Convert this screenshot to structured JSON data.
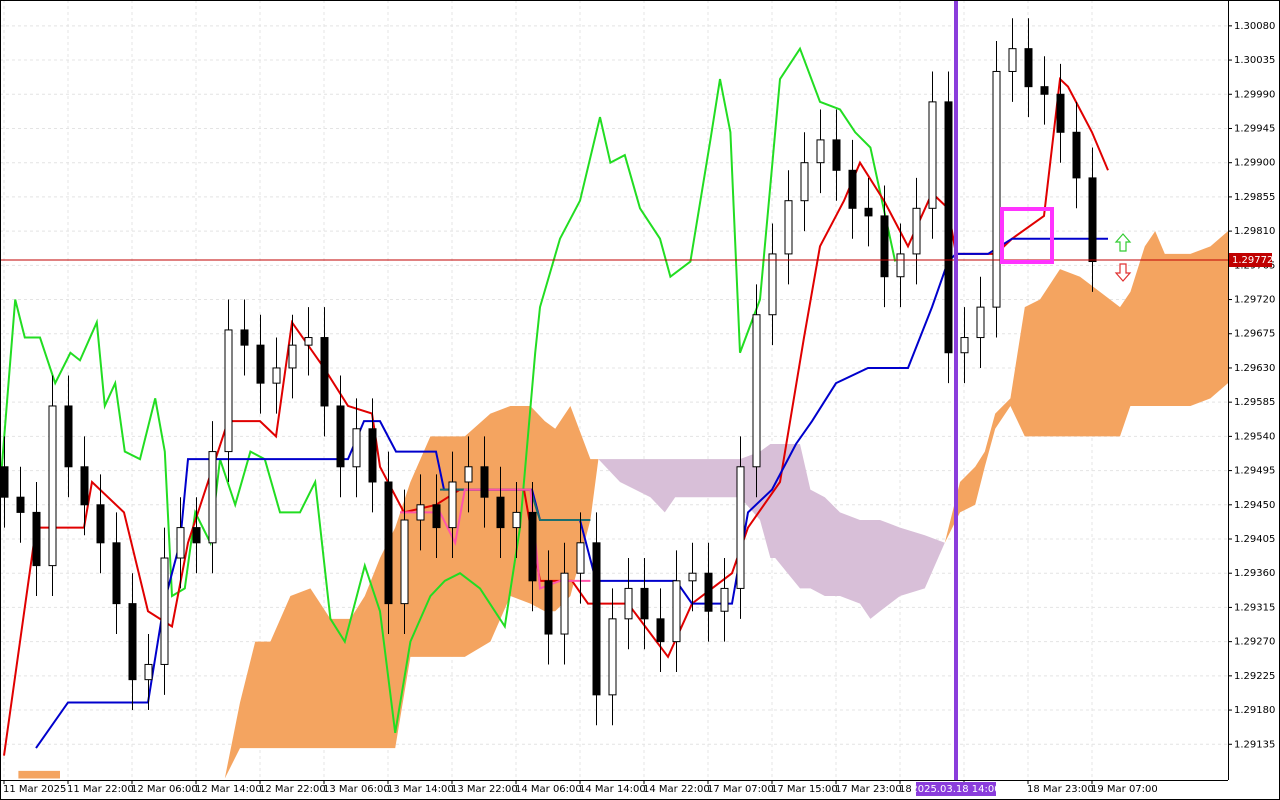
{
  "chart_data": {
    "type": "candlestick",
    "xlim": [
      -0.5,
      153
    ],
    "ylim": [
      1.29088,
      1.30114
    ],
    "grid": true,
    "xticks": [
      {
        "value": 0,
        "label": "11 Mar 2025"
      },
      {
        "value": 8,
        "label": "11 Mar 22:00"
      },
      {
        "value": 16,
        "label": "12 Mar 06:00"
      },
      {
        "value": 24,
        "label": "12 Mar 14:00"
      },
      {
        "value": 32,
        "label": "12 Mar 22:00"
      },
      {
        "value": 40,
        "label": "13 Mar 06:00"
      },
      {
        "value": 48,
        "label": "13 Mar 14:00"
      },
      {
        "value": 56,
        "label": "13 Mar 22:00"
      },
      {
        "value": 64,
        "label": "14 Mar 06:00"
      },
      {
        "value": 72,
        "label": "14 Mar 14:00"
      },
      {
        "value": 80,
        "label": "14 Mar 22:00"
      },
      {
        "value": 88,
        "label": "17 Mar 07:00"
      },
      {
        "value": 96,
        "label": "17 Mar 15:00"
      },
      {
        "value": 104,
        "label": "17 Mar 23:00"
      },
      {
        "value": 112,
        "label": "18 M"
      },
      {
        "value": 120,
        "label": "15:00"
      },
      {
        "value": 128,
        "label": "18 Mar 23:00"
      },
      {
        "value": 136,
        "label": "19 Mar 07:00"
      }
    ],
    "yticks": [
      {
        "value": 1.3008,
        "label": "1.30080"
      },
      {
        "value": 1.30035,
        "label": "1.30035"
      },
      {
        "value": 1.2999,
        "label": "1.29990"
      },
      {
        "value": 1.29945,
        "label": "1.29945"
      },
      {
        "value": 1.299,
        "label": "1.29900"
      },
      {
        "value": 1.29855,
        "label": "1.29855"
      },
      {
        "value": 1.2981,
        "label": "1.29810"
      },
      {
        "value": 1.29765,
        "label": "1.29765"
      },
      {
        "value": 1.2972,
        "label": "1.29720"
      },
      {
        "value": 1.29675,
        "label": "1.29675"
      },
      {
        "value": 1.2963,
        "label": "1.29630"
      },
      {
        "value": 1.29585,
        "label": "1.29585"
      },
      {
        "value": 1.2954,
        "label": "1.29540"
      },
      {
        "value": 1.29495,
        "label": "1.29495"
      },
      {
        "value": 1.2945,
        "label": "1.29450"
      },
      {
        "value": 1.29405,
        "label": "1.29405"
      },
      {
        "value": 1.2936,
        "label": "1.29360"
      },
      {
        "value": 1.29315,
        "label": "1.29315"
      },
      {
        "value": 1.2927,
        "label": "1.29270"
      },
      {
        "value": 1.29225,
        "label": "1.29225"
      },
      {
        "value": 1.2918,
        "label": "1.29180"
      },
      {
        "value": 1.29135,
        "label": "1.29135"
      }
    ],
    "candles": {
      "up_color": "#ffffff",
      "down_color": "#000000",
      "x": [
        0,
        2,
        4,
        6,
        8,
        10,
        12,
        14,
        16,
        18,
        20,
        22,
        24,
        26,
        28,
        30,
        32,
        34,
        36,
        38,
        40,
        42,
        44,
        46,
        48,
        50,
        52,
        54,
        56,
        58,
        60,
        62,
        64,
        66,
        68,
        70,
        72,
        74,
        76,
        78,
        80,
        82,
        84,
        86,
        88,
        90,
        92,
        94,
        96,
        98,
        100,
        102,
        104,
        106,
        108,
        110,
        112,
        114,
        116,
        118,
        120,
        122,
        124,
        126,
        128,
        130,
        132,
        134,
        136
      ],
      "open": [
        1.295,
        1.2946,
        1.2944,
        1.2937,
        1.2958,
        1.295,
        1.2945,
        1.294,
        1.2932,
        1.2922,
        1.2924,
        1.2938,
        1.2942,
        1.294,
        1.2952,
        1.2968,
        1.2966,
        1.2961,
        1.2963,
        1.2966,
        1.2967,
        1.2958,
        1.295,
        1.2955,
        1.2948,
        1.2932,
        1.2943,
        1.2945,
        1.2942,
        1.2948,
        1.295,
        1.2946,
        1.2942,
        1.2944,
        1.2935,
        1.2928,
        1.2936,
        1.294,
        1.292,
        1.293,
        1.2934,
        1.293,
        1.2927,
        1.2935,
        1.2936,
        1.2931,
        1.2934,
        1.295,
        1.297,
        1.2978,
        1.2985,
        1.299,
        1.2993,
        1.2989,
        1.2984,
        1.2983,
        1.2975,
        1.2978,
        1.2984,
        1.2998,
        1.2965,
        1.2967,
        1.2971,
        1.3002,
        1.3005,
        1.3,
        1.2999,
        1.2994,
        1.2988
      ],
      "high": [
        1.2954,
        1.295,
        1.2948,
        1.2962,
        1.2962,
        1.2954,
        1.2949,
        1.2944,
        1.2936,
        1.2928,
        1.2942,
        1.2946,
        1.2946,
        1.2956,
        1.2972,
        1.2972,
        1.297,
        1.2967,
        1.297,
        1.2971,
        1.2971,
        1.2962,
        1.2959,
        1.2959,
        1.2952,
        1.2947,
        1.2949,
        1.2949,
        1.2952,
        1.2954,
        1.2954,
        1.295,
        1.2948,
        1.2948,
        1.2939,
        1.294,
        1.2944,
        1.2944,
        1.2934,
        1.2938,
        1.2938,
        1.2934,
        1.2939,
        1.294,
        1.294,
        1.2938,
        1.2954,
        1.2974,
        1.2982,
        1.2989,
        1.2994,
        1.2997,
        1.2997,
        1.2993,
        1.2988,
        1.2987,
        1.2982,
        1.2988,
        1.3002,
        1.3002,
        1.2971,
        1.2975,
        1.3006,
        1.3009,
        1.3009,
        1.3004,
        1.3003,
        1.2998,
        1.2992
      ],
      "low": [
        1.2942,
        1.294,
        1.2933,
        1.2933,
        1.2946,
        1.2941,
        1.2936,
        1.2928,
        1.2918,
        1.2918,
        1.292,
        1.2934,
        1.2936,
        1.2936,
        1.2948,
        1.2962,
        1.2957,
        1.2957,
        1.2959,
        1.2962,
        1.2954,
        1.2946,
        1.2946,
        1.2944,
        1.2928,
        1.2928,
        1.2939,
        1.2938,
        1.2938,
        1.2944,
        1.2942,
        1.2938,
        1.2938,
        1.2931,
        1.2924,
        1.2924,
        1.2932,
        1.2916,
        1.2916,
        1.2926,
        1.2926,
        1.2923,
        1.2923,
        1.2931,
        1.2927,
        1.2927,
        1.293,
        1.2946,
        1.2966,
        1.2974,
        1.2981,
        1.2986,
        1.2985,
        1.298,
        1.2979,
        1.2971,
        1.2971,
        1.2974,
        1.298,
        1.2961,
        1.2961,
        1.2963,
        1.2967,
        1.2998,
        1.2996,
        1.2995,
        1.299,
        1.2984,
        1.2973
      ],
      "close": [
        1.2946,
        1.2944,
        1.2937,
        1.2958,
        1.295,
        1.2945,
        1.294,
        1.2932,
        1.2922,
        1.2924,
        1.2938,
        1.2942,
        1.294,
        1.2952,
        1.2968,
        1.2966,
        1.2961,
        1.2963,
        1.2966,
        1.2967,
        1.2958,
        1.295,
        1.2955,
        1.2948,
        1.2932,
        1.2943,
        1.2945,
        1.2942,
        1.2948,
        1.295,
        1.2946,
        1.2942,
        1.2944,
        1.2935,
        1.2928,
        1.2936,
        1.294,
        1.292,
        1.293,
        1.2934,
        1.293,
        1.2927,
        1.2935,
        1.2936,
        1.2931,
        1.2934,
        1.295,
        1.297,
        1.2978,
        1.2985,
        1.299,
        1.2993,
        1.2989,
        1.2984,
        1.2983,
        1.2975,
        1.2978,
        1.2984,
        1.2998,
        1.2965,
        1.2967,
        1.2971,
        1.3002,
        1.3005,
        1.3,
        1.2999,
        1.2994,
        1.2988,
        1.2977
      ]
    },
    "clouds": [
      {
        "color": "#f4a460",
        "x": [
          1.8,
          7
        ],
        "upper": [
          1.291,
          1.291
        ],
        "lower": [
          1.2909,
          1.2909
        ]
      },
      {
        "color": "#f4a460",
        "x": [
          27.6,
          29.5,
          31.4,
          33.3,
          35.8,
          38.3,
          40.8,
          43.3,
          45.1,
          47,
          48.9,
          50.8,
          53.3,
          57.6,
          60.8,
          63.3,
          65.8,
          67.6,
          68.9,
          70.8,
          73.3,
          74.3
        ],
        "upper": [
          1.2909,
          1.2919,
          1.2927,
          1.2927,
          1.2933,
          1.2934,
          1.293,
          1.293,
          1.2933,
          1.2938,
          1.2942,
          1.2948,
          1.2954,
          1.2954,
          1.2957,
          1.2958,
          1.2958,
          1.2956,
          1.2955,
          1.2958,
          1.2951,
          1.2951
        ],
        "lower": [
          1.2909,
          1.2913,
          1.2913,
          1.2913,
          1.2913,
          1.2913,
          1.2913,
          1.2913,
          1.2913,
          1.2913,
          1.2913,
          1.2925,
          1.2925,
          1.2925,
          1.2927,
          1.2933,
          1.2932,
          1.2931,
          1.2931,
          1.2933,
          1.2943,
          1.2951
        ]
      },
      {
        "color": "#d8bfd8",
        "x": [
          74.3,
          77,
          80.8,
          82.6,
          83.9,
          92,
          94.5,
          95.8,
          96.4,
          99.5,
          100.8,
          102.6,
          104.5,
          107,
          108.3,
          109.5,
          112,
          115.1,
          117.6
        ],
        "upper": [
          1.2951,
          1.2951,
          1.2951,
          1.2951,
          1.2951,
          1.2951,
          1.2952,
          1.2953,
          1.2953,
          1.2953,
          1.2947,
          1.2946,
          1.2944,
          1.2943,
          1.2943,
          1.2943,
          1.2942,
          1.2941,
          1.294
        ],
        "lower": [
          1.2951,
          1.2948,
          1.2946,
          1.2944,
          1.2946,
          1.2946,
          1.2943,
          1.2938,
          1.2938,
          1.2934,
          1.2934,
          1.2933,
          1.2933,
          1.2932,
          1.293,
          1.2931,
          1.2933,
          1.2934,
          1.294
        ]
      },
      {
        "color": "#f4a460",
        "x": [
          117.6,
          119.5,
          121.4,
          122.6,
          123.9,
          125.8,
          127.6,
          129.5,
          132,
          134.5,
          137,
          139.5,
          140.8,
          142.6,
          143.9,
          145.1,
          148.3,
          150.8,
          153
        ],
        "upper": [
          1.294,
          1.2948,
          1.295,
          1.2952,
          1.2957,
          1.2959,
          1.2971,
          1.2972,
          1.2976,
          1.2975,
          1.2973,
          1.2971,
          1.2973,
          1.2979,
          1.2981,
          1.2978,
          1.2978,
          1.2979,
          1.2981
        ],
        "lower": [
          1.294,
          1.2944,
          1.2945,
          1.295,
          1.2955,
          1.2958,
          1.2954,
          1.2954,
          1.2954,
          1.2954,
          1.2954,
          1.2954,
          1.2958,
          1.2958,
          1.2958,
          1.2958,
          1.2958,
          1.2959,
          1.2961
        ]
      }
    ],
    "lines": [
      {
        "color": "#22dd22",
        "x": [
          -0.5,
          1.4,
          2.6,
          4.5,
          6.4,
          8.3,
          9.5,
          11.6,
          12.6,
          13.9,
          15.1,
          17,
          18.9,
          20.1,
          21,
          22.6,
          23.9,
          25.8,
          27,
          28.9,
          30.8,
          32.6,
          34.5,
          37,
          38.9,
          40.8,
          42.6,
          45.1,
          47,
          48.9,
          50.8,
          53.3,
          55.1,
          57,
          59.5,
          62.6,
          64.5,
          66.4,
          67,
          69.5,
          72,
          74.5,
          75.8,
          77.6,
          79.5,
          82,
          83.3,
          85.8,
          88.3,
          89.5,
          90.8,
          92,
          94.5,
          97,
          99.5,
          102,
          104.5,
          106.4,
          108.3,
          111.4
        ],
        "values": [
          1.2947,
          1.2972,
          1.2967,
          1.2967,
          1.2961,
          1.2965,
          1.2964,
          1.2969,
          1.2958,
          1.2961,
          1.2952,
          1.2951,
          1.2959,
          1.2952,
          1.2933,
          1.2934,
          1.2944,
          1.294,
          1.2951,
          1.2945,
          1.2952,
          1.2951,
          1.2944,
          1.2944,
          1.2948,
          1.293,
          1.2927,
          1.2937,
          1.2931,
          1.2915,
          1.2927,
          1.2933,
          1.2935,
          1.2936,
          1.2934,
          1.2929,
          1.2942,
          1.2965,
          1.2971,
          1.298,
          1.2985,
          1.2996,
          1.299,
          1.2991,
          1.2984,
          1.298,
          1.2975,
          1.2977,
          1.2993,
          1.3001,
          1.2994,
          1.2965,
          1.2972,
          1.3001,
          1.3005,
          1.2998,
          1.2997,
          1.2994,
          1.2992,
          1.2977
        ]
      },
      {
        "color": "#e00000",
        "x": [
          0,
          4,
          10,
          11,
          15,
          18,
          21,
          23,
          28,
          32,
          34,
          36,
          40,
          43,
          46,
          47,
          50,
          54,
          57,
          65,
          67,
          71,
          73,
          78,
          83,
          86,
          91,
          93,
          97,
          100,
          102,
          105,
          107,
          110,
          113,
          116,
          118,
          119,
          124,
          126,
          130,
          132,
          133,
          136,
          138
        ],
        "values": [
          1.2912,
          1.2942,
          1.2942,
          1.2948,
          1.2944,
          1.2931,
          1.2929,
          1.294,
          1.2956,
          1.2956,
          1.2954,
          1.2969,
          1.2963,
          1.2958,
          1.2957,
          1.295,
          1.2944,
          1.2945,
          1.2947,
          1.2947,
          1.2935,
          1.2935,
          1.2932,
          1.2932,
          1.2925,
          1.2932,
          1.2936,
          1.2942,
          1.2948,
          1.2967,
          1.2979,
          1.2985,
          1.299,
          1.2985,
          1.2979,
          1.2986,
          1.2984,
          1.2978,
          1.2978,
          1.298,
          1.2983,
          1.3001,
          1.3,
          1.2994,
          1.2989
        ]
      },
      {
        "color": "#0000cc",
        "x": [
          4,
          8,
          12,
          18,
          20,
          22,
          23,
          43,
          45,
          47,
          49,
          54,
          55,
          66,
          67,
          72,
          74,
          84,
          86,
          91,
          93,
          96,
          99,
          101,
          104,
          108,
          113,
          116,
          118,
          119,
          123,
          126,
          138
        ],
        "values": [
          1.2913,
          1.2919,
          1.2919,
          1.2919,
          1.2932,
          1.294,
          1.2951,
          1.2951,
          1.2956,
          1.2956,
          1.2952,
          1.2952,
          1.2947,
          1.2947,
          1.2943,
          1.2943,
          1.2935,
          1.2935,
          1.2932,
          1.2932,
          1.2944,
          1.2947,
          1.2953,
          1.2956,
          1.2961,
          1.2963,
          1.2963,
          1.2971,
          1.2977,
          1.2978,
          1.2978,
          1.298,
          1.298
        ]
      },
      {
        "color": "#1e6e6e",
        "x": [
          54.5,
          65.8,
          67,
          73.3
        ],
        "values": [
          1.2947,
          1.2947,
          1.2943,
          1.2943
        ]
      },
      {
        "color": "#ff55aa",
        "x": [
          49.5,
          54.5,
          56.4,
          57.6,
          59.5,
          65.8,
          67,
          69.5,
          73.3
        ],
        "values": [
          1.2944,
          1.2944,
          1.294,
          1.2947,
          1.2947,
          1.2947,
          1.2934,
          1.2935,
          1.2935
        ]
      }
    ],
    "current_price": 1.29772,
    "current_price_color": "#c00000",
    "cursor": {
      "x": 119,
      "label": "2025.03.18 14:00",
      "color": "#8a3ddb"
    }
  }
}
